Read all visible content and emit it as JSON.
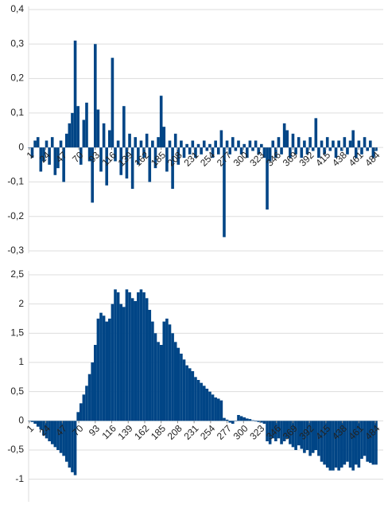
{
  "chart_data": [
    {
      "type": "bar",
      "color": "#004586",
      "grid": true,
      "x": [
        1,
        5,
        9,
        13,
        17,
        21,
        25,
        29,
        33,
        37,
        41,
        45,
        49,
        53,
        57,
        61,
        65,
        69,
        73,
        77,
        81,
        85,
        89,
        93,
        97,
        101,
        105,
        109,
        113,
        117,
        121,
        125,
        129,
        133,
        137,
        141,
        145,
        149,
        153,
        157,
        161,
        165,
        169,
        173,
        177,
        181,
        185,
        189,
        193,
        197,
        201,
        205,
        209,
        213,
        217,
        221,
        225,
        229,
        233,
        237,
        241,
        245,
        249,
        253,
        257,
        261,
        265,
        269,
        273,
        277,
        281,
        285,
        289,
        293,
        297,
        301,
        305,
        309,
        313,
        317,
        321,
        325,
        329,
        333,
        337,
        341,
        345,
        349,
        353,
        357,
        361,
        365,
        369,
        373,
        377,
        381,
        385,
        389,
        393,
        397,
        401,
        405,
        409,
        413,
        417,
        421,
        425,
        429,
        433,
        437,
        441,
        445,
        449,
        453,
        457,
        461,
        465,
        469,
        473,
        477,
        481,
        485
      ],
      "values": [
        0,
        -0.03,
        0.02,
        0.03,
        -0.07,
        -0.04,
        0.02,
        -0.05,
        0.03,
        -0.08,
        -0.06,
        0.02,
        -0.1,
        0.04,
        0.07,
        0.1,
        0.31,
        0.12,
        -0.05,
        0.08,
        0.13,
        -0.04,
        -0.16,
        0.3,
        0.11,
        -0.07,
        0.07,
        -0.11,
        0.05,
        0.26,
        -0.04,
        0.02,
        -0.08,
        0.12,
        -0.09,
        0.04,
        -0.12,
        0.03,
        -0.05,
        0.02,
        -0.03,
        0.04,
        -0.1,
        0.02,
        -0.06,
        0.03,
        0.15,
        0.06,
        -0.07,
        0.02,
        -0.12,
        0.04,
        -0.05,
        0.02,
        -0.03,
        0.01,
        -0.02,
        0.02,
        -0.03,
        0.01,
        -0.02,
        0.02,
        -0.01,
        0.01,
        -0.03,
        0.02,
        -0.02,
        0.05,
        -0.26,
        0.02,
        -0.02,
        0.03,
        -0.01,
        0.02,
        -0.02,
        0.01,
        -0.03,
        0.02,
        -0.01,
        0.02,
        -0.02,
        0.01,
        -0.03,
        -0.18,
        -0.04,
        0.02,
        -0.03,
        0.03,
        -0.02,
        0.07,
        0.05,
        -0.03,
        0.04,
        -0.02,
        0.03,
        -0.03,
        0.02,
        -0.02,
        0.03,
        -0.01,
        0.085,
        -0.03,
        0.02,
        -0.02,
        0.03,
        -0.01,
        0.02,
        -0.03,
        0.02,
        -0.01,
        0.03,
        -0.02,
        0.02,
        0.05,
        -0.03,
        0.02,
        -0.02,
        0.03,
        -0.01,
        0.02,
        -0.03,
        -0.01
      ],
      "xlim": [
        0,
        495
      ],
      "xticks": [
        1,
        24,
        47,
        70,
        93,
        116,
        139,
        162,
        185,
        208,
        231,
        254,
        277,
        300,
        323,
        346,
        369,
        392,
        415,
        438,
        461,
        484
      ],
      "ylim": [
        -0.3,
        0.4
      ],
      "yticks": [
        {
          "value": 0.4,
          "label": "0,4"
        },
        {
          "value": 0.3,
          "label": "0,3"
        },
        {
          "value": 0.2,
          "label": "0,2"
        },
        {
          "value": 0.1,
          "label": "0,1"
        },
        0,
        {
          "value": -0.1,
          "label": "-0,1"
        },
        {
          "value": -0.2,
          "label": "-0,2"
        },
        {
          "value": -0.3,
          "label": "-0,3"
        }
      ]
    },
    {
      "type": "bar",
      "color": "#004586",
      "grid": true,
      "x": [
        1,
        5,
        9,
        13,
        17,
        21,
        25,
        29,
        33,
        37,
        41,
        45,
        49,
        53,
        57,
        61,
        65,
        69,
        73,
        77,
        81,
        85,
        89,
        93,
        97,
        101,
        105,
        109,
        113,
        117,
        121,
        125,
        129,
        133,
        137,
        141,
        145,
        149,
        153,
        157,
        161,
        165,
        169,
        173,
        177,
        181,
        185,
        189,
        193,
        197,
        201,
        205,
        209,
        213,
        217,
        221,
        225,
        229,
        233,
        237,
        241,
        245,
        249,
        253,
        257,
        261,
        265,
        269,
        273,
        277,
        281,
        285,
        289,
        293,
        297,
        301,
        305,
        309,
        313,
        317,
        321,
        325,
        329,
        333,
        337,
        341,
        345,
        349,
        353,
        357,
        361,
        365,
        369,
        373,
        377,
        381,
        385,
        389,
        393,
        397,
        401,
        405,
        409,
        413,
        417,
        421,
        425,
        429,
        433,
        437,
        441,
        445,
        449,
        453,
        457,
        461,
        465,
        469,
        473,
        477,
        481,
        485
      ],
      "values": [
        0,
        -0.02,
        -0.05,
        -0.1,
        -0.15,
        -0.25,
        -0.3,
        -0.35,
        -0.4,
        -0.45,
        -0.5,
        -0.55,
        -0.6,
        -0.7,
        -0.8,
        -0.88,
        -0.93,
        0.15,
        0.3,
        0.45,
        0.6,
        0.8,
        1.0,
        1.3,
        1.75,
        1.85,
        1.8,
        1.7,
        1.75,
        2.0,
        2.25,
        2.2,
        2.0,
        1.95,
        2.25,
        2.2,
        2.1,
        2.05,
        2.2,
        2.25,
        2.2,
        2.1,
        1.9,
        1.7,
        1.5,
        1.35,
        1.3,
        1.7,
        1.75,
        1.65,
        1.5,
        1.35,
        1.25,
        1.15,
        1.05,
        0.95,
        0.9,
        0.85,
        0.75,
        0.7,
        0.65,
        0.6,
        0.55,
        0.5,
        0.45,
        0.4,
        0.38,
        0.35,
        0.05,
        0.02,
        -0.03,
        -0.05,
        0.0,
        0.1,
        0.08,
        0.06,
        0.04,
        0.03,
        0.01,
        -0.01,
        -0.02,
        -0.03,
        -0.05,
        -0.35,
        -0.4,
        -0.3,
        -0.35,
        -0.3,
        -0.4,
        -0.35,
        -0.3,
        -0.4,
        -0.45,
        -0.5,
        -0.42,
        -0.48,
        -0.55,
        -0.5,
        -0.6,
        -0.55,
        -0.5,
        -0.6,
        -0.7,
        -0.75,
        -0.8,
        -0.85,
        -0.85,
        -0.8,
        -0.85,
        -0.8,
        -0.75,
        -0.7,
        -0.8,
        -0.85,
        -0.75,
        -0.8,
        -0.65,
        -0.6,
        -0.7,
        -0.72,
        -0.75,
        -0.75
      ],
      "xlim": [
        0,
        495
      ],
      "xticks": [
        1,
        24,
        47,
        70,
        93,
        116,
        139,
        162,
        185,
        208,
        231,
        254,
        277,
        300,
        323,
        346,
        369,
        392,
        415,
        438,
        461,
        484
      ],
      "ylim": [
        -1.1,
        2.5
      ],
      "yticks": [
        {
          "value": 2.5,
          "label": "2,5"
        },
        2,
        {
          "value": 1.5,
          "label": "1,5"
        },
        1,
        {
          "value": 0.5,
          "label": "0,5"
        },
        0,
        {
          "value": -0.5,
          "label": "-0,5"
        },
        -1
      ]
    }
  ]
}
